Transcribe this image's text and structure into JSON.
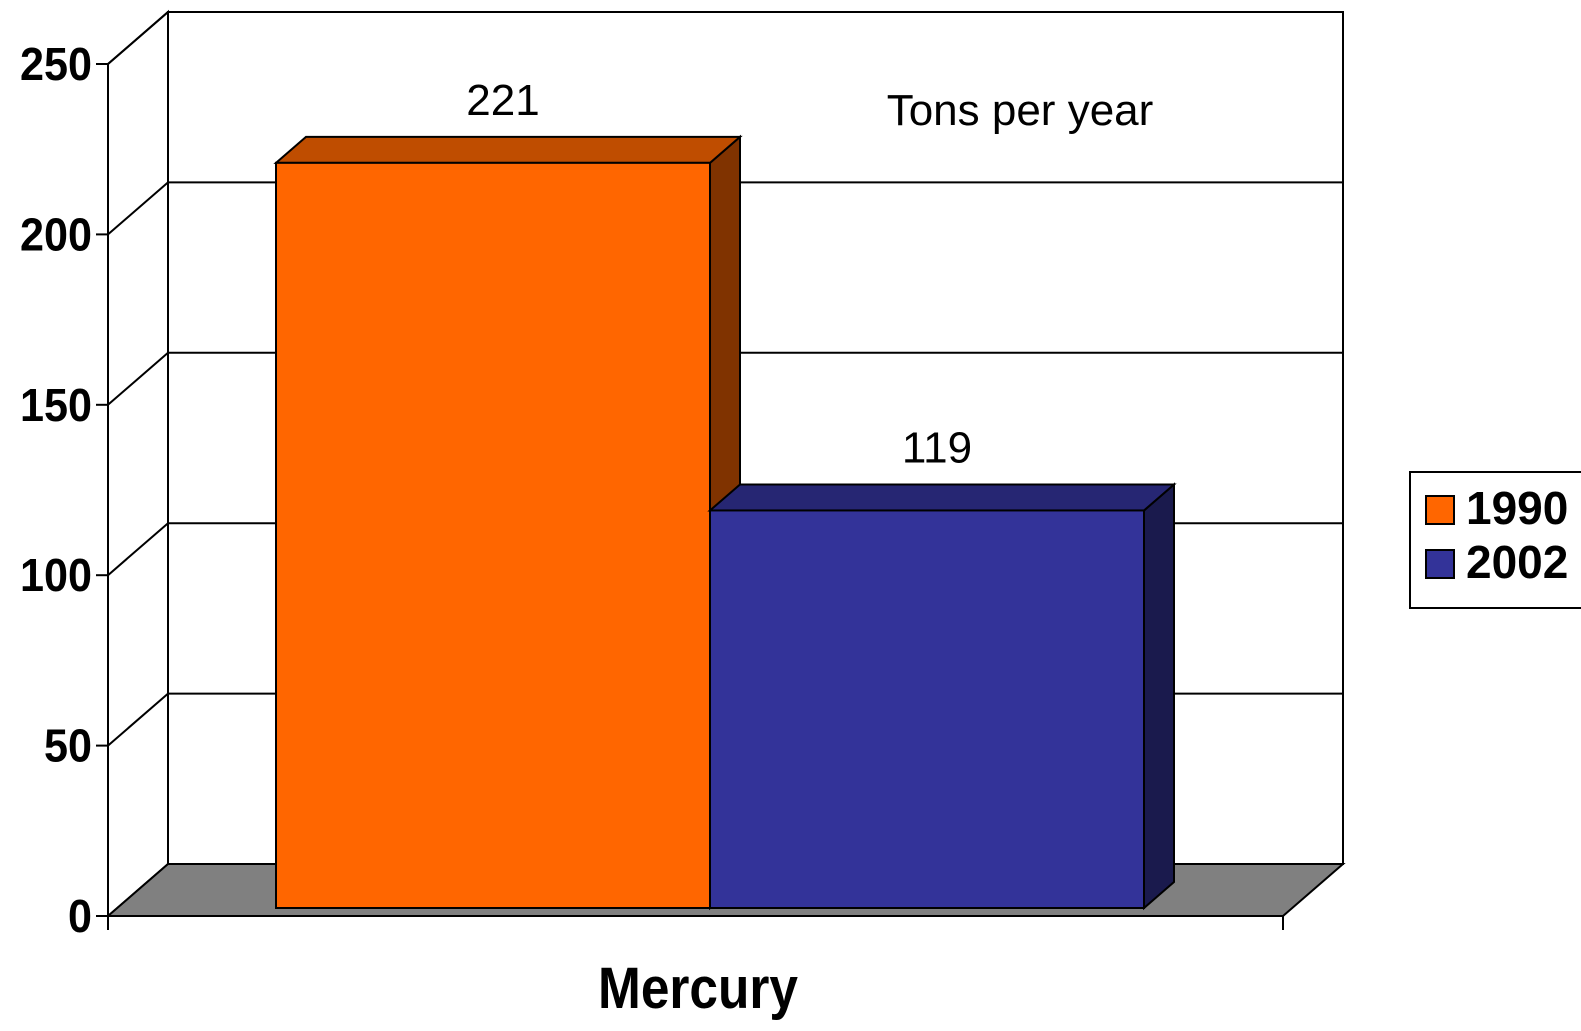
{
  "chart_data": {
    "type": "bar",
    "style": "3d-clustered",
    "categories": [
      "Mercury"
    ],
    "series": [
      {
        "name": "1990",
        "values": [
          221
        ],
        "color": "#FF6600"
      },
      {
        "name": "2002",
        "values": [
          119
        ],
        "color": "#333399"
      }
    ],
    "data_labels": [
      "221",
      "119"
    ],
    "annotation": "Tons per year",
    "ylim": [
      0,
      250
    ],
    "y_ticks": [
      0,
      50,
      100,
      150,
      200,
      250
    ],
    "grid": true,
    "floor_color": "#808080",
    "legend": {
      "position": "right",
      "entries": [
        "1990",
        "2002"
      ]
    }
  }
}
